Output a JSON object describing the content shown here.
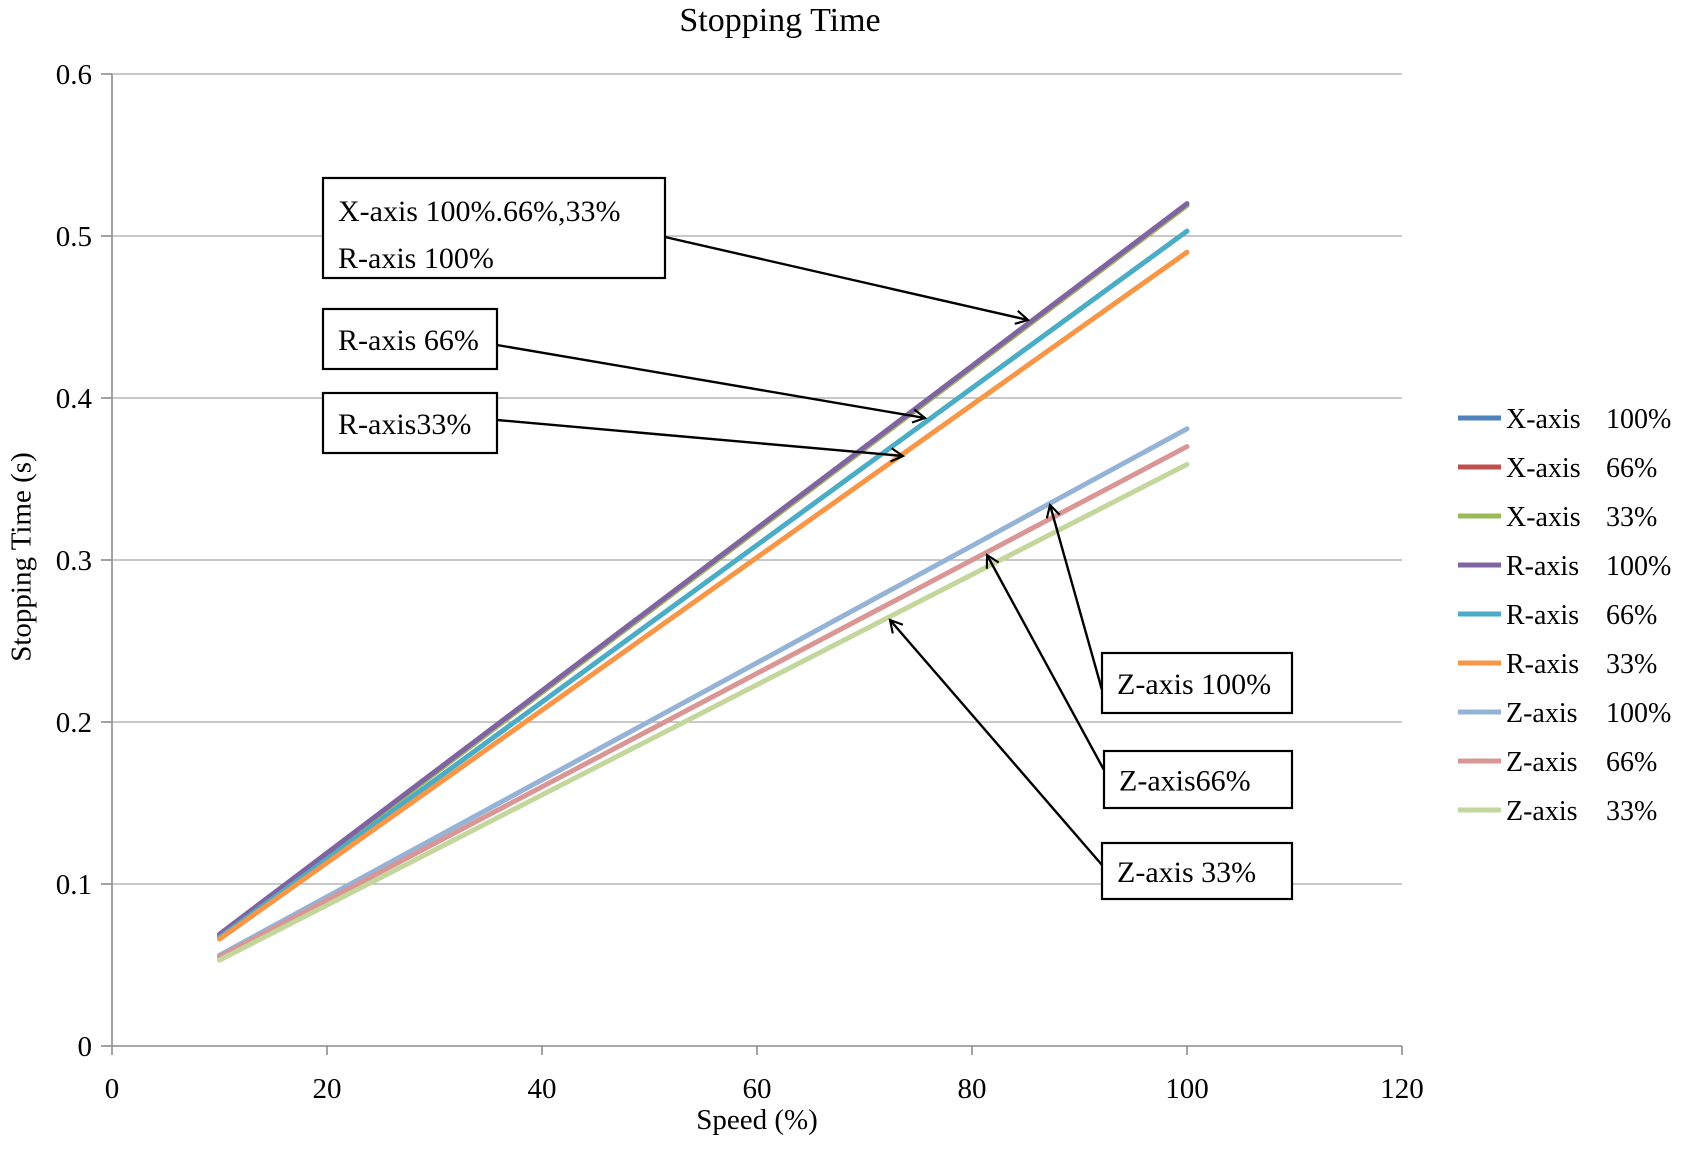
{
  "title": "Stopping Time",
  "chart_data": {
    "type": "line",
    "title": "Stopping Time",
    "xlabel": "Speed (%)",
    "ylabel": "Stopping Time (s)",
    "xlim": [
      0,
      120
    ],
    "ylim": [
      0,
      0.6
    ],
    "x_ticks": [
      0,
      20,
      40,
      60,
      80,
      100,
      120
    ],
    "x_tick_labels": [
      "0",
      "20",
      "40",
      "60",
      "80",
      "100",
      "120"
    ],
    "y_ticks": [
      0,
      0.1,
      0.2,
      0.3,
      0.4,
      0.5,
      0.6
    ],
    "y_tick_labels": [
      "0",
      "0.1",
      "0.2",
      "0.3",
      "0.4",
      "0.5",
      "0.6"
    ],
    "grid": "horizontal",
    "legend_position": "right",
    "x": [
      10,
      100
    ],
    "series": [
      {
        "name": "X-axis",
        "pct": "100%",
        "color": "#4F81BD",
        "values": [
          0.068,
          0.519
        ]
      },
      {
        "name": "X-axis",
        "pct": "66%",
        "color": "#C0504D",
        "values": [
          0.068,
          0.519
        ]
      },
      {
        "name": "X-axis",
        "pct": "33%",
        "color": "#9BBB59",
        "values": [
          0.068,
          0.519
        ]
      },
      {
        "name": "R-axis",
        "pct": "100%",
        "color": "#8064A2",
        "values": [
          0.069,
          0.52
        ]
      },
      {
        "name": "R-axis",
        "pct": "66%",
        "color": "#4BACC6",
        "values": [
          0.067,
          0.503
        ]
      },
      {
        "name": "R-axis",
        "pct": "33%",
        "color": "#F79646",
        "values": [
          0.066,
          0.49
        ]
      },
      {
        "name": "Z-axis",
        "pct": "100%",
        "color": "#95B3D7",
        "values": [
          0.056,
          0.381
        ]
      },
      {
        "name": "Z-axis",
        "pct": "66%",
        "color": "#D99694",
        "values": [
          0.055,
          0.37
        ]
      },
      {
        "name": "Z-axis",
        "pct": "33%",
        "color": "#C3D69B",
        "values": [
          0.053,
          0.359
        ]
      }
    ],
    "annotations": [
      {
        "lines": [
          "X-axis 100%.66%,33%",
          "R-axis 100%"
        ]
      },
      {
        "lines": [
          "R-axis 66%"
        ]
      },
      {
        "lines": [
          "R-axis33%"
        ]
      },
      {
        "lines": [
          "Z-axis 100%"
        ]
      },
      {
        "lines": [
          "Z-axis66%"
        ]
      },
      {
        "lines": [
          "Z-axis 33%"
        ]
      }
    ]
  },
  "colors": {
    "axis": "#8c8c8c",
    "gridline": "#a6a6a6",
    "annotation_border": "#000000",
    "annotation_fill": "#ffffff",
    "arrow": "#000000"
  }
}
